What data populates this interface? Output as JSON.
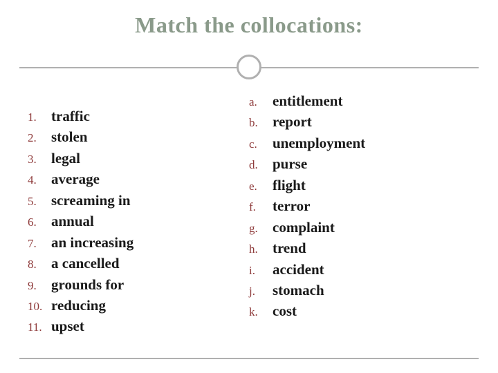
{
  "title": "Match the collocations:",
  "colors": {
    "title_color": "#8a9a8a",
    "marker_color": "#8e3a3a",
    "term_color": "#1a1a1a",
    "divider_color": "#b0b0b0",
    "background": "#ffffff"
  },
  "typography": {
    "title_fontsize": 32,
    "term_fontsize": 21,
    "marker_fontsize": 17,
    "font_family": "Georgia, serif"
  },
  "left_list": [
    {
      "marker": "1.",
      "term": "traffic"
    },
    {
      "marker": "2.",
      "term": "stolen"
    },
    {
      "marker": "3.",
      "term": "legal"
    },
    {
      "marker": "4.",
      "term": "average"
    },
    {
      "marker": "5.",
      "term": "screaming in"
    },
    {
      "marker": "6.",
      "term": "annual"
    },
    {
      "marker": "7.",
      "term": "an increasing"
    },
    {
      "marker": "8.",
      "term": "a cancelled"
    },
    {
      "marker": "9.",
      "term": "grounds for"
    },
    {
      "marker": "10.",
      "term": "reducing"
    },
    {
      "marker": "11.",
      "term": "upset"
    }
  ],
  "right_list": [
    {
      "marker": "a.",
      "term": "entitlement"
    },
    {
      "marker": "b.",
      "term": "report"
    },
    {
      "marker": "c.",
      "term": "unemployment"
    },
    {
      "marker": "d.",
      "term": "purse"
    },
    {
      "marker": "e.",
      "term": "flight"
    },
    {
      "marker": "f.",
      "term": "terror"
    },
    {
      "marker": "g.",
      "term": "complaint"
    },
    {
      "marker": "h.",
      "term": "trend"
    },
    {
      "marker": "i.",
      "term": "accident"
    },
    {
      "marker": "j.",
      "term": "stomach"
    },
    {
      "marker": "k.",
      "term": "cost"
    }
  ]
}
